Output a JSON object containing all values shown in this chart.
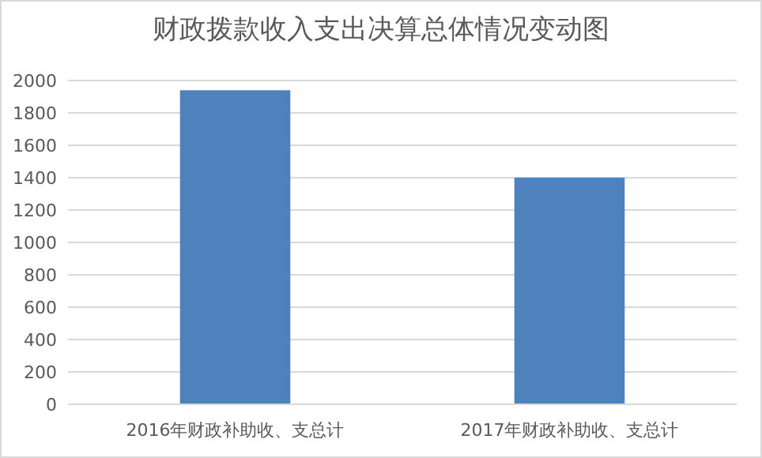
{
  "chart_data": {
    "type": "bar",
    "title": "财政拨款收入支出决算总体情况变动图",
    "categories": [
      "2016年财政补助收、支总计",
      "2017年财政补助收、支总计"
    ],
    "values": [
      1940,
      1400
    ],
    "color": "#4f81bd",
    "ylim": [
      0,
      2000
    ],
    "yticks": [
      0,
      200,
      400,
      600,
      800,
      1000,
      1200,
      1400,
      1600,
      1800,
      2000
    ],
    "grid": "y"
  }
}
